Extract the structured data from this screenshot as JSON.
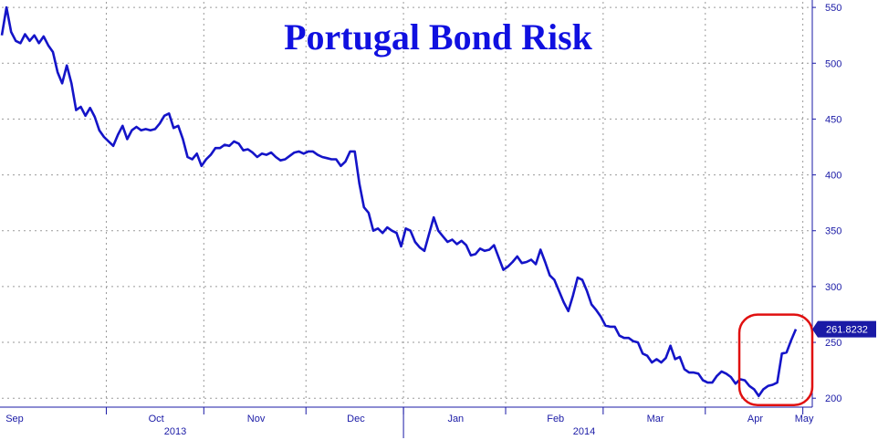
{
  "chart_data": {
    "type": "line",
    "title": "Portugal Bond Risk",
    "ylim": [
      192,
      555
    ],
    "yticks": [
      200,
      250,
      300,
      350,
      400,
      450,
      500,
      550
    ],
    "x_month_labels": [
      "Sep",
      "Oct",
      "Nov",
      "Dec",
      "Jan",
      "Feb",
      "Mar",
      "Apr",
      "May"
    ],
    "x_year_labels": [
      "2013",
      "2014"
    ],
    "last_value_label": "261.8232",
    "grid": true,
    "colors": {
      "line": "#1414c8",
      "axis": "#1a1aa6",
      "highlight": "#e01010",
      "badge": "#1a1aa6"
    },
    "series": [
      {
        "values": [
          525,
          550,
          528,
          520,
          518,
          526,
          520,
          525,
          518,
          524,
          516,
          510,
          492,
          482,
          498,
          482,
          458,
          461,
          453,
          460,
          452,
          440,
          434,
          430,
          426,
          436,
          444,
          432,
          440,
          443,
          440,
          441,
          440,
          441,
          446,
          453,
          455,
          442,
          444,
          432,
          416,
          414,
          419,
          408,
          414,
          418,
          424,
          424,
          427,
          426,
          430,
          428,
          422,
          423,
          420,
          416,
          419,
          418,
          420,
          416,
          413,
          414,
          417,
          420,
          421,
          419,
          421,
          421,
          418,
          416,
          415,
          414,
          414,
          408,
          412,
          421,
          421,
          392,
          371,
          366,
          350,
          352,
          348,
          353,
          350,
          348,
          336,
          352,
          350,
          340,
          335,
          332,
          347,
          362,
          350,
          345,
          340,
          342,
          338,
          341,
          337,
          328,
          329,
          334,
          332,
          333,
          337,
          326,
          315,
          318,
          322,
          327,
          321,
          322,
          324,
          320,
          333,
          322,
          310,
          306,
          296,
          286,
          278,
          292,
          308,
          306,
          296,
          284,
          279,
          273,
          265,
          264,
          264,
          256,
          254,
          254,
          251,
          250,
          240,
          238,
          232,
          235,
          232,
          236,
          247,
          235,
          237,
          226,
          223,
          223,
          222,
          216,
          214,
          214,
          220,
          224,
          222,
          219,
          213,
          217,
          216,
          211,
          208,
          202,
          208,
          211,
          212,
          214,
          240,
          241,
          252,
          261.8232
        ]
      }
    ]
  }
}
